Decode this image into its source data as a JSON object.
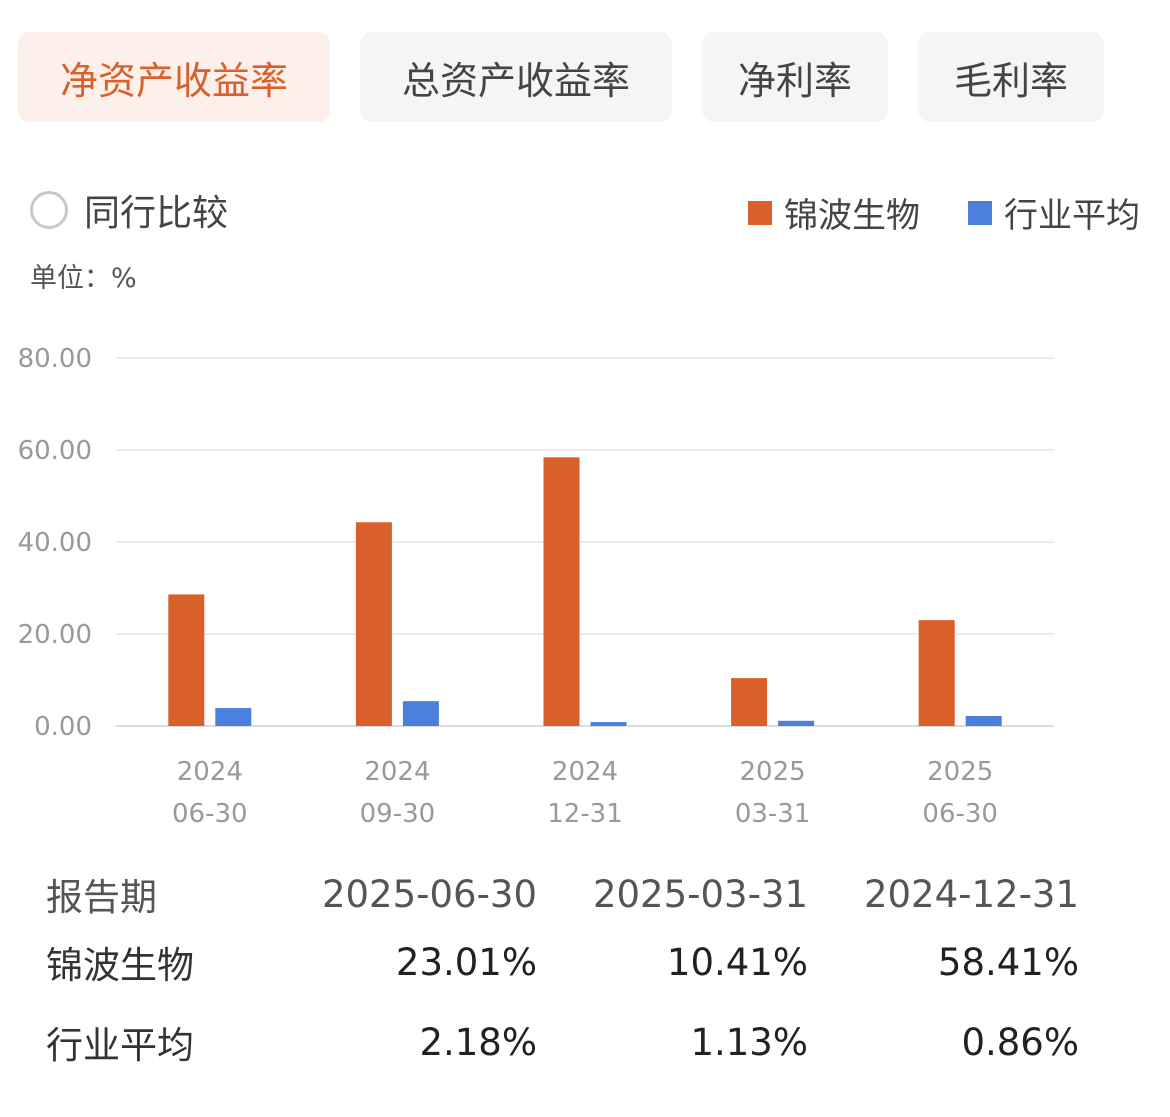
{
  "tabs": [
    {
      "label": "净资产收益率",
      "active": true
    },
    {
      "label": "总资产收益率",
      "active": false
    },
    {
      "label": "净利率",
      "active": false
    },
    {
      "label": "毛利率",
      "active": false
    }
  ],
  "compare": {
    "label": "同行比较",
    "checked": false
  },
  "legend": [
    {
      "label": "锦波生物",
      "color": "#d95f2b"
    },
    {
      "label": "行业平均",
      "color": "#4a7fde"
    }
  ],
  "unit": "单位：%",
  "chart_data": {
    "type": "bar",
    "categories": [
      [
        "2024",
        "06-30"
      ],
      [
        "2024",
        "09-30"
      ],
      [
        "2024",
        "12-31"
      ],
      [
        "2025",
        "03-31"
      ],
      [
        "2025",
        "06-30"
      ]
    ],
    "series": [
      {
        "name": "锦波生物",
        "color": "#d95f2b",
        "values": [
          28.6,
          44.3,
          58.41,
          10.41,
          23.01
        ]
      },
      {
        "name": "行业平均",
        "color": "#4a7fde",
        "values": [
          3.9,
          5.4,
          0.86,
          1.13,
          2.18
        ]
      }
    ],
    "y_ticks": [
      "0.00",
      "20.00",
      "40.00",
      "60.00",
      "80.00"
    ],
    "ylim": [
      0,
      80
    ],
    "grid": true,
    "legend_position": "top-right"
  },
  "table": {
    "header_label": "报告期",
    "periods": [
      "2025-06-30",
      "2025-03-31",
      "2024-12-31"
    ],
    "rows": [
      {
        "label": "锦波生物",
        "values": [
          "23.01%",
          "10.41%",
          "58.41%"
        ]
      },
      {
        "label": "行业平均",
        "values": [
          "2.18%",
          "1.13%",
          "0.86%"
        ]
      }
    ]
  }
}
